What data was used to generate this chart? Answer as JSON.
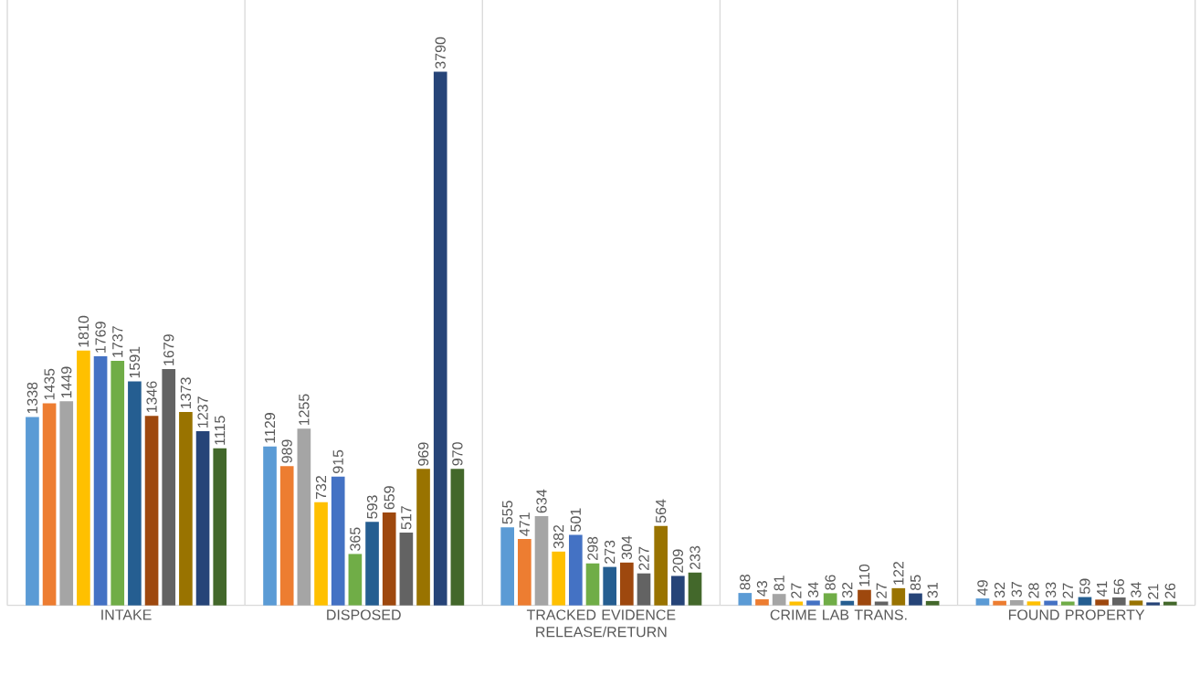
{
  "chart_data": {
    "type": "bar",
    "categories": [
      "INTAKE",
      "DISPOSED",
      "TRACKED EVIDENCE RELEASE/RETURN",
      "CRIME LAB TRANS.",
      "FOUND PROPERTY"
    ],
    "series": [
      {
        "color": "#5b9bd5",
        "values": [
          1338,
          1129,
          555,
          88,
          49
        ]
      },
      {
        "color": "#ed7d31",
        "values": [
          1435,
          989,
          471,
          43,
          32
        ]
      },
      {
        "color": "#a5a5a5",
        "values": [
          1449,
          1255,
          634,
          81,
          37
        ]
      },
      {
        "color": "#ffc000",
        "values": [
          1810,
          732,
          382,
          27,
          28
        ]
      },
      {
        "color": "#4472c4",
        "values": [
          1769,
          915,
          501,
          34,
          33
        ]
      },
      {
        "color": "#70ad47",
        "values": [
          1737,
          365,
          298,
          86,
          27
        ]
      },
      {
        "color": "#255e91",
        "values": [
          1591,
          593,
          273,
          32,
          59
        ]
      },
      {
        "color": "#9e480e",
        "values": [
          1346,
          659,
          304,
          110,
          41
        ]
      },
      {
        "color": "#636363",
        "values": [
          1679,
          517,
          227,
          27,
          56
        ]
      },
      {
        "color": "#997300",
        "values": [
          1373,
          969,
          564,
          122,
          34
        ]
      },
      {
        "color": "#264478",
        "values": [
          1237,
          3790,
          209,
          85,
          21
        ]
      },
      {
        "color": "#43682b",
        "values": [
          1115,
          970,
          233,
          31,
          26
        ]
      }
    ],
    "ylim": [
      0,
      4300
    ],
    "tick_labels": "x",
    "grid": "x",
    "data_labels": true
  }
}
